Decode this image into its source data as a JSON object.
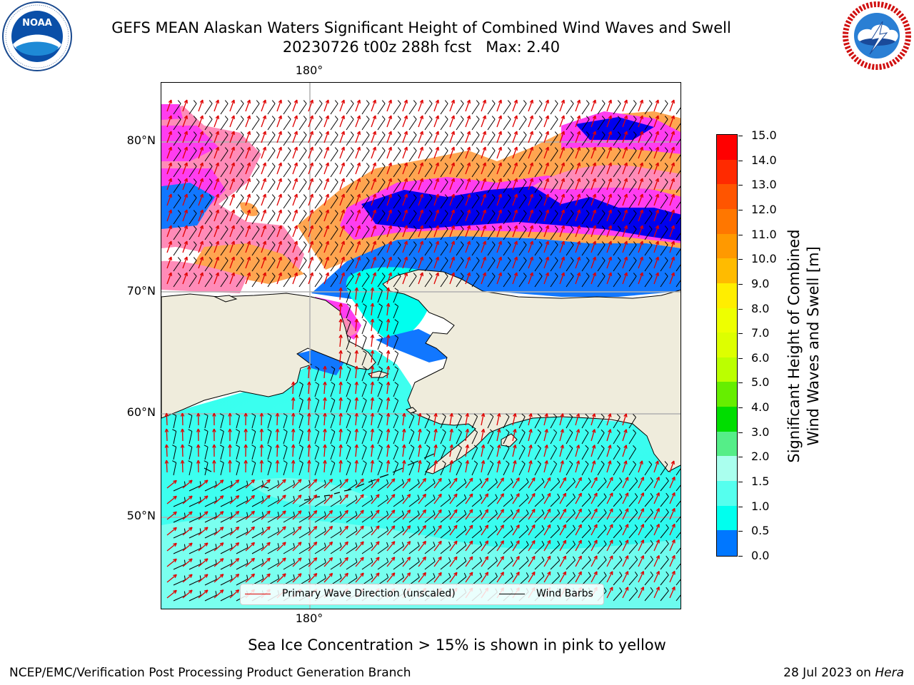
{
  "title": {
    "line1": "GEFS MEAN Alaskan Waters Significant Height of Combined Wind Waves and Swell",
    "line2": "20230726 t00z 288h fcst   Max: 2.40"
  },
  "logos": {
    "left": {
      "name": "NOAA",
      "ring_text": "NATIONAL OCEANIC AND ATMOSPHERIC ADMINISTRATION",
      "bottom_text": "U.S. DEPARTMENT OF COMMERCE"
    },
    "right": {
      "name": "NATIONAL WEATHER SERVICE"
    }
  },
  "map": {
    "lon_labels": {
      "top": "180°",
      "bottom": "180°"
    },
    "lat_labels": [
      "80°N",
      "70°N",
      "60°N",
      "50°N"
    ],
    "legend": {
      "wave_label": "Primary Wave Direction (unscaled)",
      "wind_label": "Wind Barbs",
      "wave_color": "#e00000",
      "wind_color": "#000000"
    },
    "colors": {
      "land": "#efecdc",
      "ice": [
        "#ff3df0",
        "#ff8bb8",
        "#ffa550",
        "#ffc830"
      ],
      "gridline": "#b0b0b0"
    }
  },
  "colorbar": {
    "title_line1": "Significant Height of Combined",
    "title_line2": "Wind Waves and Swell [m]",
    "ticks": [
      "15.0",
      "14.0",
      "13.0",
      "12.0",
      "11.0",
      "10.0",
      "9.0",
      "8.0",
      "7.0",
      "6.0",
      "5.0",
      "4.0",
      "3.0",
      "2.0",
      "1.5",
      "1.0",
      "0.5",
      "0.0"
    ],
    "colors_top_to_bottom": [
      "#ff0000",
      "#ff2a00",
      "#ff5500",
      "#ff7700",
      "#ff9900",
      "#ffbb00",
      "#ffee00",
      "#eeff00",
      "#ddff00",
      "#bbff00",
      "#66ee00",
      "#00dd00",
      "#55ee88",
      "#aaffee",
      "#55ffee",
      "#00ffee",
      "#0077ff",
      "#0000ff"
    ]
  },
  "subcaption": "Sea Ice Concentration > 15% is shown in pink to yellow",
  "footer": {
    "left": "NCEP/EMC/Verification Post Processing Product Generation Branch",
    "right_date": "28 Jul 2023 on ",
    "right_machine": "Hera"
  }
}
